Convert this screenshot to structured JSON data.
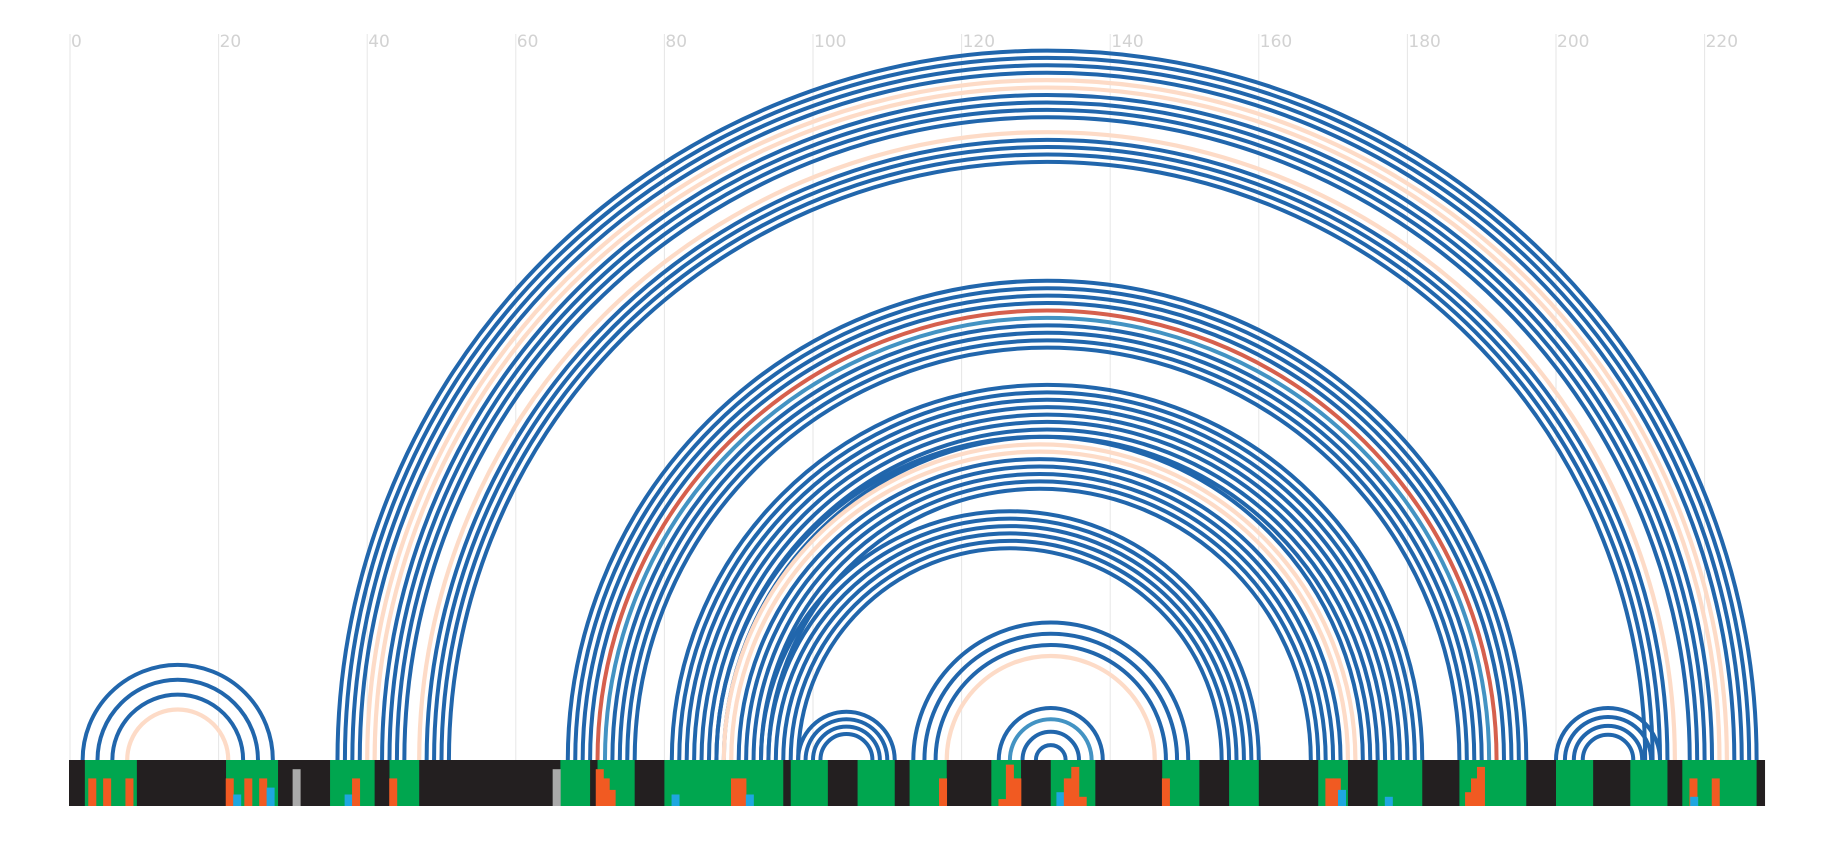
{
  "axis": {
    "min": 0,
    "max": 228,
    "ticks": [
      {
        "value": 0,
        "label": "0"
      },
      {
        "value": 20,
        "label": "20"
      },
      {
        "value": 40,
        "label": "40"
      },
      {
        "value": 60,
        "label": "60"
      },
      {
        "value": 80,
        "label": "80"
      },
      {
        "value": 100,
        "label": "100"
      },
      {
        "value": 120,
        "label": "120"
      },
      {
        "value": 140,
        "label": "140"
      },
      {
        "value": 160,
        "label": "160"
      },
      {
        "value": 180,
        "label": "180"
      },
      {
        "value": 200,
        "label": "200"
      },
      {
        "value": 220,
        "label": "220"
      }
    ]
  },
  "colors": {
    "background": "#ffffff",
    "grid": "#e6e6e6",
    "tick_text": "#d2d2d2",
    "track": "#231f20",
    "region": "#00a64f",
    "mark_orange": "#f15a22",
    "mark_cyan": "#1fa6e0",
    "mark_grey": "#aaaaaa",
    "arc_blue": "#2166ac",
    "arc_light_blue": "#4393c3",
    "arc_peach": "#fddbc7",
    "arc_red": "#d6604d"
  },
  "regions": [
    [
      2,
      9
    ],
    [
      21,
      28
    ],
    [
      35,
      41
    ],
    [
      43,
      47
    ],
    [
      66,
      70
    ],
    [
      71,
      76
    ],
    [
      80,
      96
    ],
    [
      97,
      102
    ],
    [
      106,
      111
    ],
    [
      113,
      118
    ],
    [
      124,
      128
    ],
    [
      132,
      138
    ],
    [
      147,
      152
    ],
    [
      156,
      160
    ],
    [
      168,
      172
    ],
    [
      176,
      182
    ],
    [
      187,
      196
    ],
    [
      200,
      205
    ],
    [
      210,
      215
    ],
    [
      217,
      227
    ]
  ],
  "marks": [
    {
      "x": 3,
      "h": 0.6,
      "color": "orange"
    },
    {
      "x": 5,
      "h": 0.6,
      "color": "orange"
    },
    {
      "x": 8,
      "h": 0.6,
      "color": "orange"
    },
    {
      "x": 21.5,
      "h": 0.6,
      "color": "orange"
    },
    {
      "x": 22.5,
      "h": 0.25,
      "color": "cyan"
    },
    {
      "x": 24,
      "h": 0.6,
      "color": "orange"
    },
    {
      "x": 26,
      "h": 0.6,
      "color": "orange"
    },
    {
      "x": 27,
      "h": 0.4,
      "color": "cyan"
    },
    {
      "x": 30.5,
      "h": 0.8,
      "color": "grey"
    },
    {
      "x": 37.5,
      "h": 0.25,
      "color": "cyan"
    },
    {
      "x": 38.5,
      "h": 0.6,
      "color": "orange"
    },
    {
      "x": 43.5,
      "h": 0.6,
      "color": "orange"
    },
    {
      "x": 65.5,
      "h": 0.8,
      "color": "grey"
    },
    {
      "x": 71.3,
      "h": 0.8,
      "color": "orange"
    },
    {
      "x": 72.1,
      "h": 0.6,
      "color": "orange"
    },
    {
      "x": 72.9,
      "h": 0.35,
      "color": "orange"
    },
    {
      "x": 81.5,
      "h": 0.25,
      "color": "cyan"
    },
    {
      "x": 89.5,
      "h": 0.6,
      "color": "orange"
    },
    {
      "x": 90.5,
      "h": 0.6,
      "color": "orange"
    },
    {
      "x": 91.5,
      "h": 0.25,
      "color": "cyan"
    },
    {
      "x": 117.5,
      "h": 0.6,
      "color": "orange"
    },
    {
      "x": 125.5,
      "h": 0.15,
      "color": "orange"
    },
    {
      "x": 126.5,
      "h": 0.9,
      "color": "orange"
    },
    {
      "x": 127.5,
      "h": 0.6,
      "color": "orange"
    },
    {
      "x": 133.3,
      "h": 0.3,
      "color": "cyan"
    },
    {
      "x": 134.3,
      "h": 0.6,
      "color": "orange"
    },
    {
      "x": 135.3,
      "h": 0.85,
      "color": "orange"
    },
    {
      "x": 136.3,
      "h": 0.2,
      "color": "orange"
    },
    {
      "x": 147.5,
      "h": 0.6,
      "color": "orange"
    },
    {
      "x": 169.5,
      "h": 0.6,
      "color": "orange"
    },
    {
      "x": 170.5,
      "h": 0.6,
      "color": "orange"
    },
    {
      "x": 171.2,
      "h": 0.35,
      "color": "cyan"
    },
    {
      "x": 177.5,
      "h": 0.2,
      "color": "cyan"
    },
    {
      "x": 188.3,
      "h": 0.3,
      "color": "orange"
    },
    {
      "x": 189.1,
      "h": 0.6,
      "color": "orange"
    },
    {
      "x": 189.9,
      "h": 0.85,
      "color": "orange"
    },
    {
      "x": 218.5,
      "h": 0.6,
      "color": "orange"
    },
    {
      "x": 218.6,
      "h": 0.2,
      "color": "cyan"
    },
    {
      "x": 221.5,
      "h": 0.6,
      "color": "orange"
    }
  ],
  "arc_groups": [
    {
      "center": 14.5,
      "radii": [
        12.8,
        10.8,
        8.8,
        6.8
      ],
      "colors": [
        "blue",
        "blue",
        "blue",
        "peach"
      ]
    },
    {
      "center": 131.5,
      "radii": [
        95.5,
        94.5,
        93.5,
        92.5,
        91.5,
        90.5,
        89.5,
        88.5,
        87.5,
        86.5,
        85.5,
        84.5,
        83.5,
        82.5,
        81.5,
        80.5,
        79.5,
        78.5,
        77.5,
        76.5
      ],
      "colors": [
        "blue",
        "blue",
        "blue",
        "blue",
        "peach",
        "peach",
        "blue",
        "blue",
        "blue",
        "blue",
        "none",
        "peach",
        "blue",
        "blue",
        "blue",
        "blue",
        "none",
        "none",
        "none",
        "none"
      ]
    },
    {
      "center": 131.5,
      "radii": [
        64.5,
        63.5,
        62.5,
        61.5,
        60.5,
        59.5,
        58.5,
        57.5,
        56.5,
        55.5,
        54.5,
        53.5,
        52.5
      ],
      "colors": [
        "blue",
        "blue",
        "blue",
        "blue",
        "red",
        "lightblue",
        "blue",
        "blue",
        "blue",
        "blue",
        "none",
        "none",
        "none"
      ]
    },
    {
      "center": 131.5,
      "radii": [
        50.5,
        49.5,
        48.5,
        47.5,
        46.5,
        45.5,
        44.5,
        43.5
      ],
      "colors": [
        "blue",
        "blue",
        "blue",
        "blue",
        "blue",
        "blue",
        "blue",
        "blue"
      ]
    },
    {
      "center": 130.5,
      "radii": [
        43.5,
        42.5,
        41.5,
        40.5,
        39.5,
        38.5,
        37.5,
        36.5
      ],
      "colors": [
        "blue",
        "peach",
        "peach",
        "blue",
        "blue",
        "blue",
        "blue",
        "blue"
      ]
    },
    {
      "center": 126.5,
      "radii": [
        33.5,
        32.5,
        31.5,
        30.5,
        29.5,
        28.5
      ],
      "colors": [
        "blue",
        "blue",
        "blue",
        "blue",
        "blue",
        "blue"
      ]
    },
    {
      "center": 104.5,
      "radii": [
        6.5,
        5.5,
        4.5,
        3.5
      ],
      "colors": [
        "blue",
        "blue",
        "blue",
        "blue"
      ]
    },
    {
      "center": 132.0,
      "radii": [
        18.5,
        17.0,
        15.5,
        14.0
      ],
      "colors": [
        "blue",
        "blue",
        "blue",
        "peach"
      ]
    },
    {
      "center": 132.0,
      "radii": [
        7.0,
        5.5,
        3.8,
        2.0
      ],
      "colors": [
        "blue",
        "lightblue",
        "blue",
        "blue"
      ]
    },
    {
      "center": 207.0,
      "radii": [
        7.0,
        5.8,
        4.6,
        3.4
      ],
      "colors": [
        "blue",
        "blue",
        "blue",
        "blue"
      ]
    }
  ]
}
